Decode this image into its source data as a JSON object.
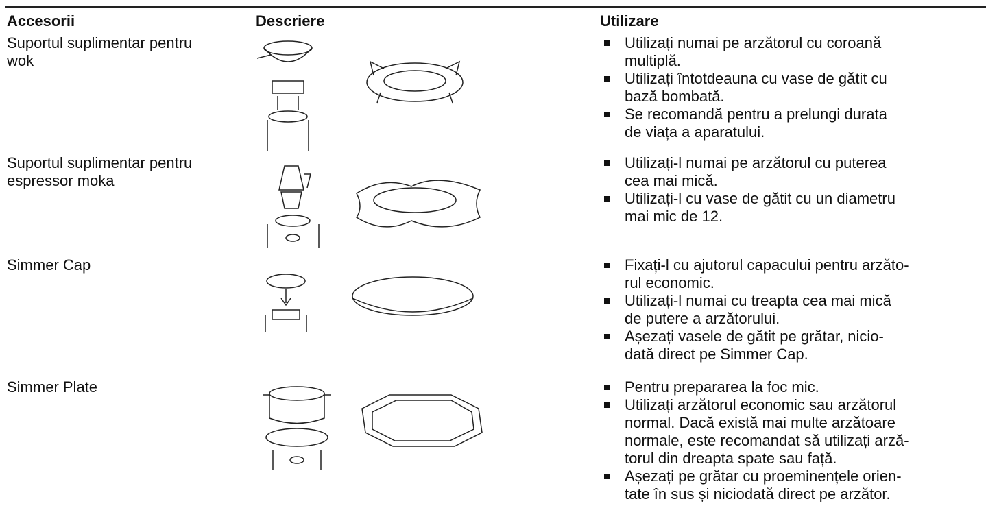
{
  "table": {
    "header": [
      "Accesorii",
      "Descriere",
      "Utilizare"
    ],
    "rows": [
      {
        "name": "Suportul suplimentar pentru\nwok",
        "usage": [
          "Utilizați numai pe arzătorul cu coroană\nmultiplă.",
          "Utilizați întotdeauna cu vase de gătit cu\nbază bombată.",
          "Se recomandă pentru a prelungi durata\nde viața a aparatului."
        ]
      },
      {
        "name": "Suportul suplimentar pentru\nespressor moka",
        "usage": [
          "Utilizați-l numai pe arzătorul cu puterea\ncea mai mică.",
          "Utilizați-l cu vase de gătit cu un diametru\nmai mic de 12."
        ]
      },
      {
        "name": "Simmer Cap",
        "usage": [
          "Fixați-l cu ajutorul capacului pentru arzăto-\nrul economic.",
          "Utilizați-l numai cu treapta cea mai mică\nde putere a arzătorului.",
          "Așezați vasele de gătit pe grătar, nicio-\ndată direct pe Simmer Cap."
        ]
      },
      {
        "name": "Simmer Plate",
        "usage": [
          "Pentru prepararea la foc mic.",
          "Utilizați arzătorul economic sau arzătorul\nnormal. Dacă există mai multe arzătoare\nnormale, este recomandat să utilizați arză-\ntorul din dreapta spate sau față.",
          "Așezați pe grătar cu proeminențele orien-\ntate în sus și niciodată direct pe arzător."
        ]
      }
    ]
  }
}
